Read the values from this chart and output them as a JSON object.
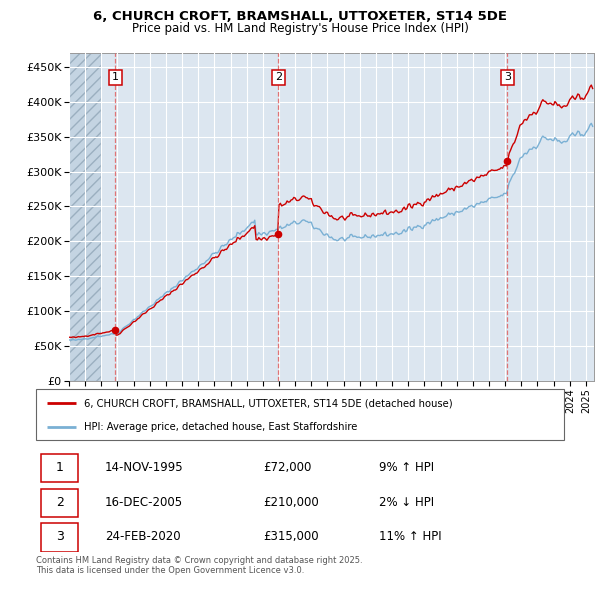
{
  "title_line1": "6, CHURCH CROFT, BRAMSHALL, UTTOXETER, ST14 5DE",
  "title_line2": "Price paid vs. HM Land Registry's House Price Index (HPI)",
  "background_color": "#ffffff",
  "plot_bg_color": "#dce6f0",
  "grid_color": "#ffffff",
  "red_line_color": "#cc0000",
  "blue_line_color": "#7ab0d4",
  "dashed_vline_color": "#e06060",
  "sale_markers": [
    {
      "year": 1995.875,
      "price": 72000,
      "label": "1",
      "date_str": "14-NOV-1995",
      "pct": "9%",
      "dir": "↑"
    },
    {
      "year": 2005.958,
      "price": 210000,
      "label": "2",
      "date_str": "16-DEC-2005",
      "pct": "2%",
      "dir": "↓"
    },
    {
      "year": 2020.13,
      "price": 315000,
      "label": "3",
      "date_str": "24-FEB-2020",
      "pct": "11%",
      "dir": "↑"
    }
  ],
  "ylim": [
    0,
    470000
  ],
  "xlim_start": 1993.0,
  "xlim_end": 2025.5,
  "yticks": [
    0,
    50000,
    100000,
    150000,
    200000,
    250000,
    300000,
    350000,
    400000,
    450000
  ],
  "ytick_labels": [
    "£0",
    "£50K",
    "£100K",
    "£150K",
    "£200K",
    "£250K",
    "£300K",
    "£350K",
    "£400K",
    "£450K"
  ],
  "xticks": [
    1993,
    1994,
    1995,
    1996,
    1997,
    1998,
    1999,
    2000,
    2001,
    2002,
    2003,
    2004,
    2005,
    2006,
    2007,
    2008,
    2009,
    2010,
    2011,
    2012,
    2013,
    2014,
    2015,
    2016,
    2017,
    2018,
    2019,
    2020,
    2021,
    2022,
    2023,
    2024,
    2025
  ],
  "legend_red_label": "6, CHURCH CROFT, BRAMSHALL, UTTOXETER, ST14 5DE (detached house)",
  "legend_blue_label": "HPI: Average price, detached house, East Staffordshire",
  "footnote": "Contains HM Land Registry data © Crown copyright and database right 2025.\nThis data is licensed under the Open Government Licence v3.0.",
  "hatch_end": 1995.0
}
